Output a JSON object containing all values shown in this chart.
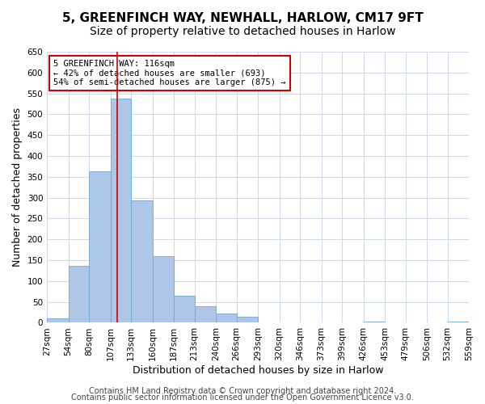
{
  "title": "5, GREENFINCH WAY, NEWHALL, HARLOW, CM17 9FT",
  "subtitle": "Size of property relative to detached houses in Harlow",
  "xlabel": "Distribution of detached houses by size in Harlow",
  "ylabel": "Number of detached properties",
  "bar_edges": [
    27,
    54,
    80,
    107,
    133,
    160,
    187,
    213,
    240,
    266,
    293,
    320,
    346,
    373,
    399,
    426,
    453,
    479,
    506,
    532,
    559
  ],
  "bar_heights": [
    10,
    137,
    363,
    537,
    293,
    160,
    65,
    40,
    22,
    14,
    0,
    0,
    0,
    0,
    0,
    3,
    0,
    0,
    0,
    3
  ],
  "bar_color": "#aec6e8",
  "bar_edgecolor": "#6fa8d6",
  "property_value": 116,
  "vline_color": "#cc0000",
  "annotation_title": "5 GREENFINCH WAY: 116sqm",
  "annotation_line1": "← 42% of detached houses are smaller (693)",
  "annotation_line2": "54% of semi-detached houses are larger (875) →",
  "annotation_box_color": "#cc0000",
  "ylim": [
    0,
    650
  ],
  "yticks": [
    0,
    50,
    100,
    150,
    200,
    250,
    300,
    350,
    400,
    450,
    500,
    550,
    600,
    650
  ],
  "xtick_labels": [
    "27sqm",
    "54sqm",
    "80sqm",
    "107sqm",
    "133sqm",
    "160sqm",
    "187sqm",
    "213sqm",
    "240sqm",
    "266sqm",
    "293sqm",
    "320sqm",
    "346sqm",
    "373sqm",
    "399sqm",
    "426sqm",
    "453sqm",
    "479sqm",
    "506sqm",
    "532sqm",
    "559sqm"
  ],
  "footer_line1": "Contains HM Land Registry data © Crown copyright and database right 2024.",
  "footer_line2": "Contains public sector information licensed under the Open Government Licence v3.0.",
  "bg_color": "#ffffff",
  "grid_color": "#d0d8e8",
  "title_fontsize": 11,
  "subtitle_fontsize": 10,
  "axis_label_fontsize": 9,
  "tick_fontsize": 7.5,
  "footer_fontsize": 7
}
